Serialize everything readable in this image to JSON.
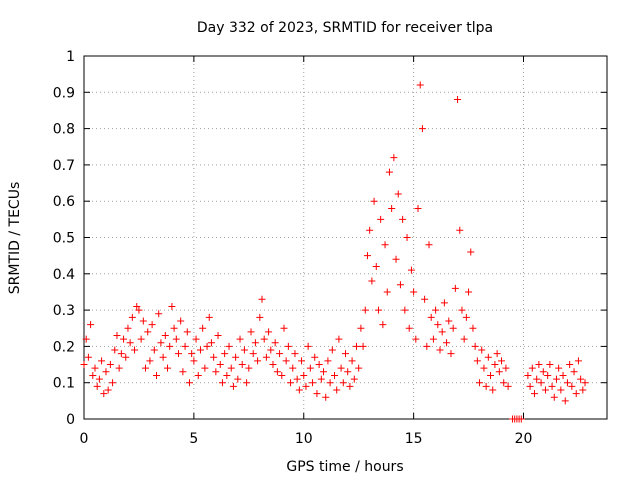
{
  "chart_data": {
    "type": "scatter",
    "title": "Day 332 of 2023, SRMTID for receiver tlpa",
    "xlabel": "GPS time / hours",
    "ylabel": "SRMTID / TECUs",
    "xlim": [
      0,
      23.8
    ],
    "ylim": [
      0,
      1
    ],
    "xticks": [
      0,
      5,
      10,
      15,
      20
    ],
    "xtick_labels": [
      "0",
      "5",
      "10",
      "15",
      "20"
    ],
    "yticks": [
      0,
      0.1,
      0.2,
      0.3,
      0.4,
      0.5,
      0.6,
      0.7,
      0.8,
      0.9,
      1
    ],
    "ytick_labels": [
      "0",
      "0.1",
      "0.2",
      "0.3",
      "0.4",
      "0.5",
      "0.6",
      "0.7",
      "0.8",
      "0.9",
      "1"
    ],
    "grid": true,
    "marker": "+",
    "color": "#ff0000",
    "series": [
      {
        "name": "SRMTID",
        "points": [
          [
            0.0,
            0.15
          ],
          [
            0.1,
            0.22
          ],
          [
            0.2,
            0.17
          ],
          [
            0.3,
            0.26
          ],
          [
            0.4,
            0.12
          ],
          [
            0.5,
            0.14
          ],
          [
            0.6,
            0.09
          ],
          [
            0.7,
            0.11
          ],
          [
            0.8,
            0.16
          ],
          [
            0.9,
            0.07
          ],
          [
            1.0,
            0.13
          ],
          [
            1.1,
            0.08
          ],
          [
            1.2,
            0.15
          ],
          [
            1.3,
            0.1
          ],
          [
            1.4,
            0.19
          ],
          [
            1.5,
            0.23
          ],
          [
            1.6,
            0.14
          ],
          [
            1.7,
            0.18
          ],
          [
            1.8,
            0.22
          ],
          [
            1.9,
            0.17
          ],
          [
            2.0,
            0.25
          ],
          [
            2.1,
            0.21
          ],
          [
            2.2,
            0.28
          ],
          [
            2.3,
            0.19
          ],
          [
            2.4,
            0.31
          ],
          [
            2.5,
            0.3
          ],
          [
            2.6,
            0.22
          ],
          [
            2.7,
            0.27
          ],
          [
            2.8,
            0.14
          ],
          [
            2.9,
            0.24
          ],
          [
            3.0,
            0.16
          ],
          [
            3.1,
            0.26
          ],
          [
            3.2,
            0.19
          ],
          [
            3.3,
            0.12
          ],
          [
            3.4,
            0.29
          ],
          [
            3.5,
            0.21
          ],
          [
            3.6,
            0.17
          ],
          [
            3.7,
            0.23
          ],
          [
            3.8,
            0.14
          ],
          [
            3.9,
            0.2
          ],
          [
            4.0,
            0.31
          ],
          [
            4.1,
            0.25
          ],
          [
            4.2,
            0.22
          ],
          [
            4.3,
            0.18
          ],
          [
            4.4,
            0.27
          ],
          [
            4.5,
            0.13
          ],
          [
            4.6,
            0.2
          ],
          [
            4.7,
            0.24
          ],
          [
            4.8,
            0.1
          ],
          [
            4.9,
            0.18
          ],
          [
            5.0,
            0.16
          ],
          [
            5.1,
            0.22
          ],
          [
            5.2,
            0.12
          ],
          [
            5.3,
            0.19
          ],
          [
            5.4,
            0.25
          ],
          [
            5.5,
            0.14
          ],
          [
            5.6,
            0.2
          ],
          [
            5.7,
            0.28
          ],
          [
            5.8,
            0.21
          ],
          [
            5.9,
            0.17
          ],
          [
            6.0,
            0.13
          ],
          [
            6.1,
            0.23
          ],
          [
            6.2,
            0.15
          ],
          [
            6.3,
            0.1
          ],
          [
            6.4,
            0.18
          ],
          [
            6.5,
            0.12
          ],
          [
            6.6,
            0.2
          ],
          [
            6.7,
            0.14
          ],
          [
            6.8,
            0.09
          ],
          [
            6.9,
            0.17
          ],
          [
            7.0,
            0.11
          ],
          [
            7.1,
            0.22
          ],
          [
            7.2,
            0.15
          ],
          [
            7.3,
            0.19
          ],
          [
            7.4,
            0.1
          ],
          [
            7.5,
            0.14
          ],
          [
            7.6,
            0.24
          ],
          [
            7.7,
            0.18
          ],
          [
            7.8,
            0.21
          ],
          [
            7.9,
            0.16
          ],
          [
            8.0,
            0.28
          ],
          [
            8.1,
            0.33
          ],
          [
            8.2,
            0.22
          ],
          [
            8.3,
            0.17
          ],
          [
            8.4,
            0.24
          ],
          [
            8.5,
            0.19
          ],
          [
            8.6,
            0.15
          ],
          [
            8.7,
            0.21
          ],
          [
            8.8,
            0.13
          ],
          [
            8.9,
            0.18
          ],
          [
            9.0,
            0.12
          ],
          [
            9.1,
            0.25
          ],
          [
            9.2,
            0.16
          ],
          [
            9.3,
            0.2
          ],
          [
            9.4,
            0.1
          ],
          [
            9.5,
            0.14
          ],
          [
            9.6,
            0.18
          ],
          [
            9.7,
            0.11
          ],
          [
            9.8,
            0.08
          ],
          [
            9.9,
            0.16
          ],
          [
            10.0,
            0.12
          ],
          [
            10.1,
            0.09
          ],
          [
            10.2,
            0.2
          ],
          [
            10.3,
            0.14
          ],
          [
            10.4,
            0.1
          ],
          [
            10.5,
            0.17
          ],
          [
            10.6,
            0.07
          ],
          [
            10.7,
            0.15
          ],
          [
            10.8,
            0.11
          ],
          [
            10.9,
            0.13
          ],
          [
            11.0,
            0.06
          ],
          [
            11.1,
            0.16
          ],
          [
            11.2,
            0.1
          ],
          [
            11.3,
            0.19
          ],
          [
            11.4,
            0.12
          ],
          [
            11.5,
            0.08
          ],
          [
            11.6,
            0.22
          ],
          [
            11.7,
            0.14
          ],
          [
            11.8,
            0.1
          ],
          [
            11.9,
            0.18
          ],
          [
            12.0,
            0.13
          ],
          [
            12.1,
            0.09
          ],
          [
            12.2,
            0.16
          ],
          [
            12.3,
            0.11
          ],
          [
            12.4,
            0.2
          ],
          [
            12.5,
            0.14
          ],
          [
            12.6,
            0.25
          ],
          [
            12.7,
            0.2
          ],
          [
            12.8,
            0.3
          ],
          [
            12.9,
            0.45
          ],
          [
            13.0,
            0.52
          ],
          [
            13.1,
            0.38
          ],
          [
            13.2,
            0.6
          ],
          [
            13.3,
            0.42
          ],
          [
            13.4,
            0.3
          ],
          [
            13.5,
            0.55
          ],
          [
            13.6,
            0.26
          ],
          [
            13.7,
            0.48
          ],
          [
            13.8,
            0.35
          ],
          [
            13.9,
            0.68
          ],
          [
            14.0,
            0.58
          ],
          [
            14.1,
            0.72
          ],
          [
            14.2,
            0.44
          ],
          [
            14.3,
            0.62
          ],
          [
            14.4,
            0.37
          ],
          [
            14.5,
            0.55
          ],
          [
            14.6,
            0.3
          ],
          [
            14.7,
            0.5
          ],
          [
            14.8,
            0.25
          ],
          [
            14.9,
            0.41
          ],
          [
            15.0,
            0.35
          ],
          [
            15.1,
            0.22
          ],
          [
            15.2,
            0.58
          ],
          [
            15.3,
            0.92
          ],
          [
            15.4,
            0.8
          ],
          [
            15.5,
            0.33
          ],
          [
            15.6,
            0.2
          ],
          [
            15.7,
            0.48
          ],
          [
            15.8,
            0.28
          ],
          [
            15.9,
            0.22
          ],
          [
            16.0,
            0.3
          ],
          [
            16.1,
            0.26
          ],
          [
            16.2,
            0.19
          ],
          [
            16.3,
            0.24
          ],
          [
            16.4,
            0.32
          ],
          [
            16.5,
            0.21
          ],
          [
            16.6,
            0.27
          ],
          [
            16.7,
            0.18
          ],
          [
            16.8,
            0.25
          ],
          [
            16.9,
            0.36
          ],
          [
            17.0,
            0.88
          ],
          [
            17.1,
            0.52
          ],
          [
            17.2,
            0.3
          ],
          [
            17.3,
            0.22
          ],
          [
            17.4,
            0.28
          ],
          [
            17.5,
            0.35
          ],
          [
            17.6,
            0.46
          ],
          [
            17.7,
            0.25
          ],
          [
            17.8,
            0.2
          ],
          [
            17.9,
            0.16
          ],
          [
            18.0,
            0.1
          ],
          [
            18.1,
            0.19
          ],
          [
            18.2,
            0.14
          ],
          [
            18.3,
            0.09
          ],
          [
            18.4,
            0.17
          ],
          [
            18.5,
            0.12
          ],
          [
            18.6,
            0.08
          ],
          [
            18.7,
            0.15
          ],
          [
            18.8,
            0.18
          ],
          [
            18.9,
            0.13
          ],
          [
            19.0,
            0.16
          ],
          [
            19.1,
            0.1
          ],
          [
            19.2,
            0.14
          ],
          [
            19.3,
            0.09
          ],
          [
            19.5,
            0.0
          ],
          [
            19.6,
            0.0
          ],
          [
            19.7,
            0.0
          ],
          [
            19.8,
            0.0
          ],
          [
            19.9,
            0.0
          ],
          [
            20.2,
            0.12
          ],
          [
            20.3,
            0.09
          ],
          [
            20.4,
            0.14
          ],
          [
            20.5,
            0.07
          ],
          [
            20.6,
            0.11
          ],
          [
            20.7,
            0.15
          ],
          [
            20.8,
            0.1
          ],
          [
            20.9,
            0.13
          ],
          [
            21.0,
            0.08
          ],
          [
            21.1,
            0.12
          ],
          [
            21.2,
            0.15
          ],
          [
            21.3,
            0.09
          ],
          [
            21.4,
            0.06
          ],
          [
            21.5,
            0.11
          ],
          [
            21.6,
            0.14
          ],
          [
            21.7,
            0.08
          ],
          [
            21.8,
            0.12
          ],
          [
            21.9,
            0.05
          ],
          [
            22.0,
            0.1
          ],
          [
            22.1,
            0.15
          ],
          [
            22.2,
            0.09
          ],
          [
            22.3,
            0.13
          ],
          [
            22.4,
            0.07
          ],
          [
            22.5,
            0.16
          ],
          [
            22.6,
            0.11
          ],
          [
            22.7,
            0.08
          ],
          [
            22.8,
            0.1
          ]
        ]
      }
    ]
  }
}
